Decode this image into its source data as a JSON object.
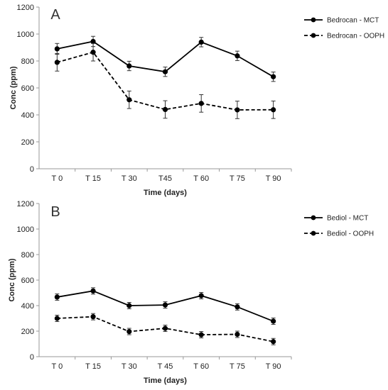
{
  "chart_data": [
    {
      "type": "line",
      "panel_label": "A",
      "categories": [
        "T 0",
        "T 15",
        "T 30",
        "T45",
        "T 60",
        "T 75",
        "T 90"
      ],
      "xlabel": "Time (days)",
      "ylabel": "Conc (ppm)",
      "ylim": [
        0,
        1200
      ],
      "yticks": [
        0,
        200,
        400,
        600,
        800,
        1000,
        1200
      ],
      "grid": false,
      "legend_position": "right",
      "series": [
        {
          "name": "Bedrocan - MCT",
          "line_style": "solid",
          "values": [
            890,
            945,
            763,
            720,
            940,
            838,
            683
          ],
          "errors": [
            40,
            38,
            35,
            35,
            35,
            35,
            35
          ]
        },
        {
          "name": "Bedrocan - OOPH",
          "line_style": "dashed",
          "values": [
            790,
            865,
            512,
            440,
            485,
            437,
            438
          ],
          "errors": [
            65,
            65,
            65,
            65,
            65,
            65,
            65
          ]
        }
      ]
    },
    {
      "type": "line",
      "panel_label": "B",
      "categories": [
        "T 0",
        "T 15",
        "T 30",
        "T 45",
        "T 60",
        "T 75",
        "T 90"
      ],
      "xlabel": "Time (days)",
      "ylabel": "Conc (ppm)",
      "ylim": [
        0,
        1200
      ],
      "yticks": [
        0,
        200,
        400,
        600,
        800,
        1000,
        1200
      ],
      "grid": false,
      "legend_position": "right",
      "series": [
        {
          "name": "Bediol - MCT",
          "line_style": "solid",
          "values": [
            467,
            515,
            400,
            405,
            478,
            390,
            278
          ],
          "errors": [
            25,
            25,
            25,
            25,
            25,
            25,
            25
          ]
        },
        {
          "name": "Bediol - OOPH",
          "line_style": "dashed",
          "values": [
            300,
            313,
            197,
            222,
            172,
            175,
            118
          ],
          "errors": [
            25,
            25,
            25,
            25,
            25,
            25,
            25
          ]
        }
      ]
    }
  ]
}
